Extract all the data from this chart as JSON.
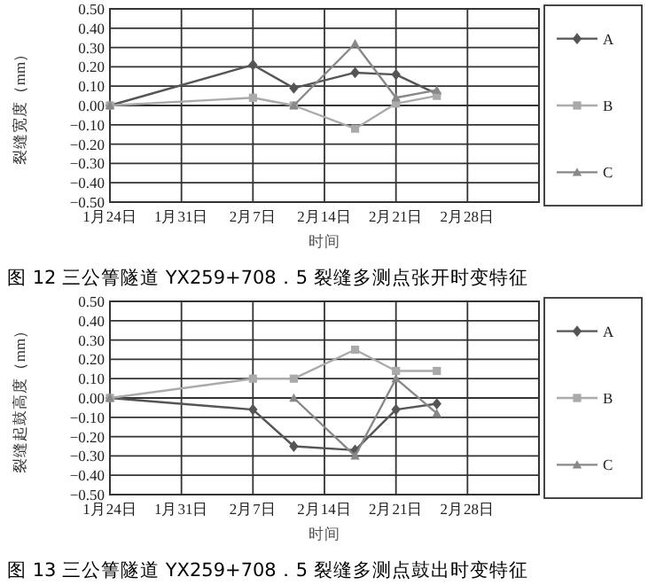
{
  "chart_data": [
    {
      "type": "line",
      "title": "图 12 三公箐隧道 YX259+708．5 裂缝多测点张开时变特征",
      "xlabel": "时间",
      "ylabel": "裂缝宽度（mm）",
      "x": [
        "--01-24",
        "--02-07",
        "--02-11",
        "--02-17",
        "--02-21",
        "--02-25"
      ],
      "xlim": [
        "--01-24",
        "--03-07"
      ],
      "xticks": [
        {
          "value": "--01-24",
          "label": "1月24日"
        },
        {
          "value": "--01-31",
          "label": "1月31日"
        },
        {
          "value": "--02-07",
          "label": "2月7日"
        },
        {
          "value": "--02-14",
          "label": "2月14日"
        },
        {
          "value": "--02-21",
          "label": "2月21日"
        },
        {
          "value": "--02-28",
          "label": "2月28日"
        },
        {
          "value": "--03-07",
          "label": null
        }
      ],
      "ylim": [
        -0.5,
        0.5
      ],
      "yticks": [
        {
          "value": -0.5,
          "label": "−0.50"
        },
        {
          "value": -0.4,
          "label": "−0.40"
        },
        {
          "value": -0.3,
          "label": "−0.30"
        },
        {
          "value": -0.2,
          "label": "−0.20"
        },
        {
          "value": -0.1,
          "label": "−0.10"
        },
        {
          "value": 0,
          "label": "0.00"
        },
        {
          "value": 0.1,
          "label": "0.10"
        },
        {
          "value": 0.2,
          "label": "0.20"
        },
        {
          "value": 0.3,
          "label": "0.30"
        },
        {
          "value": 0.4,
          "label": "0.40"
        },
        {
          "value": 0.5,
          "label": "0.50"
        }
      ],
      "grid": true,
      "legend": "right",
      "series": [
        {
          "name": "A",
          "color": "#555555",
          "marker": "diamond",
          "values": [
            0,
            0.21,
            0.09,
            0.17,
            0.16,
            0.06
          ]
        },
        {
          "name": "B",
          "color": "#aaaaaa",
          "marker": "square",
          "values": [
            0,
            0.04,
            0.0,
            -0.12,
            0.01,
            0.05
          ]
        },
        {
          "name": "C",
          "color": "#888888",
          "marker": "triangle",
          "values": [
            0,
            null,
            0.0,
            0.32,
            0.04,
            0.08
          ]
        }
      ]
    },
    {
      "type": "line",
      "title": "图 13 三公箐隧道 YX259+708．5 裂缝多测点鼓出时变特征",
      "xlabel": "时间",
      "ylabel": "裂缝起鼓高度（mm）",
      "x": [
        "--01-24",
        "--02-07",
        "--02-11",
        "--02-17",
        "--02-21",
        "--02-25"
      ],
      "xlim": [
        "--01-24",
        "--03-07"
      ],
      "xticks": [
        {
          "value": "--01-24",
          "label": "1月24日"
        },
        {
          "value": "--01-31",
          "label": "1月31日"
        },
        {
          "value": "--02-07",
          "label": "2月7日"
        },
        {
          "value": "--02-14",
          "label": "2月14日"
        },
        {
          "value": "--02-21",
          "label": "2月21日"
        },
        {
          "value": "--02-28",
          "label": "2月28日"
        },
        {
          "value": "--03-07",
          "label": null
        }
      ],
      "ylim": [
        -0.5,
        0.5
      ],
      "yticks": [
        {
          "value": -0.5,
          "label": "−0.50"
        },
        {
          "value": -0.4,
          "label": "−0.40"
        },
        {
          "value": -0.3,
          "label": "−0.30"
        },
        {
          "value": -0.2,
          "label": "−0.20"
        },
        {
          "value": -0.1,
          "label": "−0.10"
        },
        {
          "value": 0,
          "label": "0.00"
        },
        {
          "value": 0.1,
          "label": "0.10"
        },
        {
          "value": 0.2,
          "label": "0.20"
        },
        {
          "value": 0.3,
          "label": "0.30"
        },
        {
          "value": 0.4,
          "label": "0.40"
        },
        {
          "value": 0.5,
          "label": "0.50"
        }
      ],
      "grid": true,
      "legend": "right",
      "series": [
        {
          "name": "A",
          "color": "#555555",
          "marker": "diamond",
          "values": [
            0,
            -0.06,
            -0.25,
            -0.27,
            -0.06,
            -0.03
          ]
        },
        {
          "name": "B",
          "color": "#aaaaaa",
          "marker": "square",
          "values": [
            0,
            0.1,
            0.1,
            0.25,
            0.14,
            0.14
          ]
        },
        {
          "name": "C",
          "color": "#888888",
          "marker": "triangle",
          "values": [
            0,
            null,
            0.0,
            -0.3,
            0.1,
            -0.08
          ]
        }
      ]
    }
  ]
}
